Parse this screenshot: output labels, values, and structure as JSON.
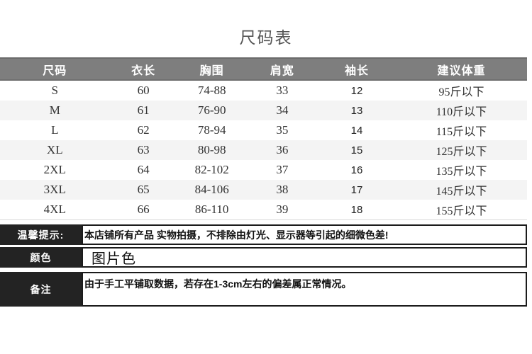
{
  "page": {
    "title": "尺码表"
  },
  "size_table": {
    "columns": [
      "尺码",
      "衣长",
      "胸围",
      "肩宽",
      "袖长",
      "建议体重"
    ],
    "rows": [
      [
        "S",
        "60",
        "74-88",
        "33",
        "12",
        "95斤以下"
      ],
      [
        "M",
        "61",
        "76-90",
        "34",
        "13",
        "110斤以下"
      ],
      [
        "L",
        "62",
        "78-94",
        "35",
        "14",
        "115斤以下"
      ],
      [
        "XL",
        "63",
        "80-98",
        "36",
        "15",
        "125斤以下"
      ],
      [
        "2XL",
        "64",
        "82-102",
        "37",
        "16",
        "135斤以下"
      ],
      [
        "3XL",
        "65",
        "84-106",
        "38",
        "17",
        "145斤以下"
      ],
      [
        "4XL",
        "66",
        "86-110",
        "39",
        "18",
        "155斤以下"
      ]
    ]
  },
  "info_rows": [
    {
      "label": "温馨提示:",
      "content": "本店铺所有产品 实物拍摄，不排除由灯光、显示器等引起的细微色差!"
    },
    {
      "label": "颜色",
      "content": "图片色"
    },
    {
      "label": "备注",
      "content": "由于手工平铺取数据，若存在1-3cm左右的偏差属正常情况。"
    }
  ],
  "colors": {
    "header_bg": "#7e7e7e",
    "header_text": "#ffffff",
    "row_stripe": "#f4f4f4",
    "label_bg": "#232323",
    "border": "#1b1b1b",
    "title_text": "#555555",
    "body_text": "#333333"
  }
}
